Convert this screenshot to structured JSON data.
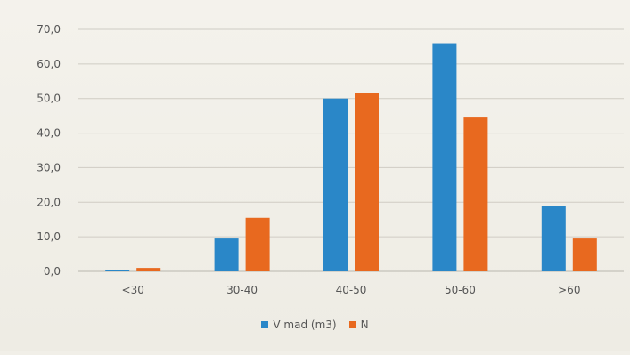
{
  "chart_data": {
    "type": "bar",
    "categories": [
      "<30",
      "30-40",
      "40-50",
      "50-60",
      ">60"
    ],
    "series": [
      {
        "name": "V mad (m3)",
        "values": [
          0.5,
          9.5,
          50.0,
          66.0,
          19.0
        ],
        "color": "#2a87c8"
      },
      {
        "name": "N",
        "values": [
          1.0,
          15.5,
          51.5,
          44.5,
          9.5
        ],
        "color": "#e8691f"
      }
    ],
    "ylim": [
      0,
      70
    ],
    "yticks": [
      "0,0",
      "10,0",
      "20,0",
      "30,0",
      "40,0",
      "50,0",
      "60,0",
      "70,0"
    ],
    "grid": true,
    "legend": "bottom",
    "title": "",
    "xlabel": "",
    "ylabel": ""
  }
}
